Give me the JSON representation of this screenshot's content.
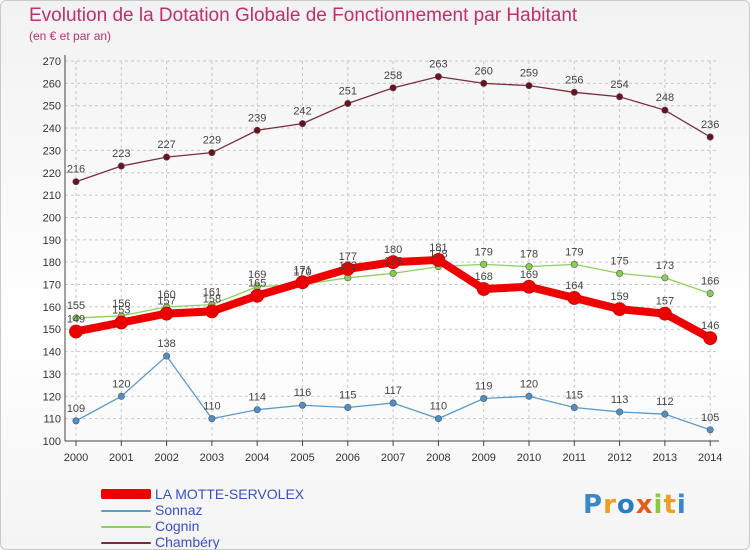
{
  "title": "Evolution de la Dotation Globale de Fonctionnement par Habitant",
  "subtitle": "(en € et par an)",
  "brand": {
    "text": "Proxiti",
    "letter_colors": [
      "#3a88c8",
      "#e9a023",
      "#2a7fc0",
      "#e65a1e",
      "#8dc63f",
      "#e9a023",
      "#3a88c8"
    ]
  },
  "chart_data": {
    "type": "line",
    "title": "Evolution de la Dotation Globale de Fonctionnement par Habitant",
    "subtitle": "(en € et par an)",
    "xlabel": "",
    "ylabel": "",
    "x": [
      "2000",
      "2001",
      "2002",
      "2003",
      "2004",
      "2005",
      "2006",
      "2007",
      "2008",
      "2009",
      "2010",
      "2011",
      "2012",
      "2013",
      "2014"
    ],
    "ylim": [
      100,
      270
    ],
    "ytick_step": 10,
    "grid": true,
    "legend_position": "bottom-left",
    "series": [
      {
        "name": "Chambéry",
        "color": "#7a2e3c",
        "marker": "#6b1020",
        "emphasis": false,
        "values": [
          216,
          223,
          227,
          229,
          239,
          242,
          251,
          258,
          263,
          260,
          259,
          256,
          254,
          248,
          236
        ]
      },
      {
        "name": "Cognin",
        "color": "#8fd060",
        "marker": "#8ad050",
        "emphasis": false,
        "values": [
          155,
          156,
          160,
          161,
          169,
          170,
          173,
          175,
          178,
          179,
          178,
          179,
          175,
          173,
          166
        ]
      },
      {
        "name": "Sonnaz",
        "color": "#5a9ccc",
        "marker": "#4f8fc7",
        "emphasis": false,
        "values": [
          109,
          120,
          138,
          110,
          114,
          116,
          115,
          117,
          110,
          119,
          120,
          115,
          113,
          112,
          105
        ]
      },
      {
        "name": "LA MOTTE-SERVOLEX",
        "color": "#ee0000",
        "marker": "#ee0000",
        "emphasis": true,
        "values": [
          149,
          153,
          157,
          158,
          165,
          171,
          177,
          180,
          181,
          168,
          169,
          164,
          159,
          157,
          146
        ]
      }
    ],
    "legend_order": [
      "LA MOTTE-SERVOLEX",
      "Sonnaz",
      "Cognin",
      "Chambéry"
    ]
  }
}
